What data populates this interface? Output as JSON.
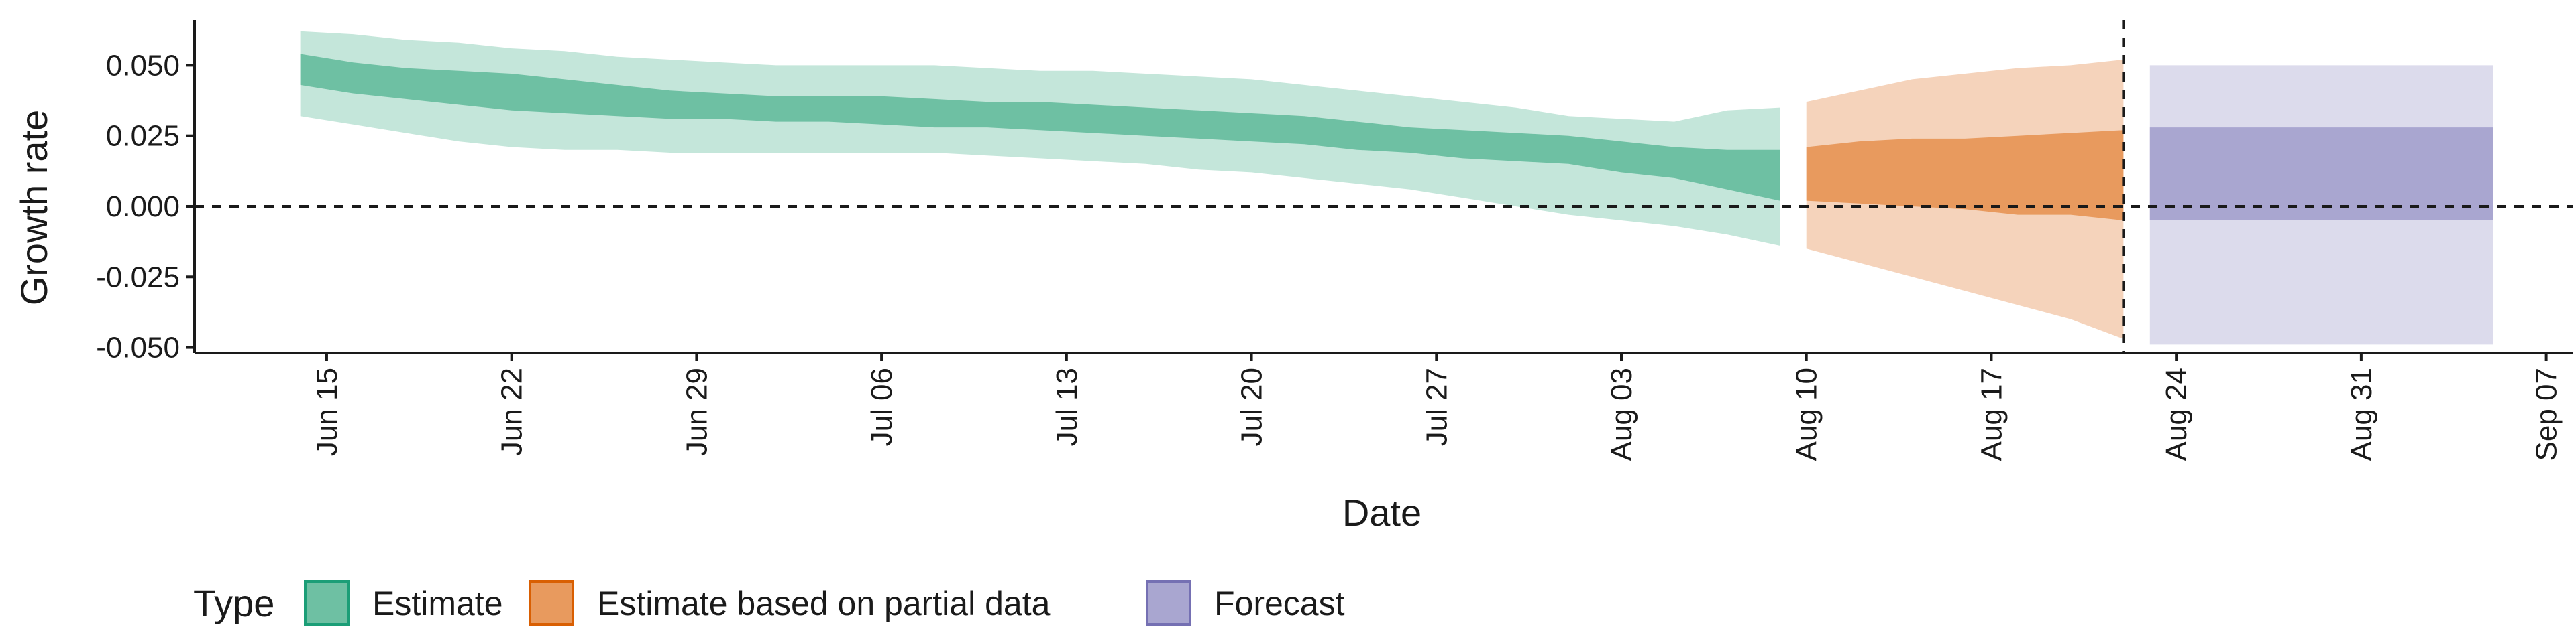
{
  "chart_data": {
    "type": "area",
    "title": "",
    "xlabel": "Date",
    "ylabel": "Growth rate",
    "x_range": [
      "2020-06-10",
      "2020-09-08"
    ],
    "ylim": [
      -0.052,
      0.066
    ],
    "y_ticks": [
      0.05,
      0.025,
      0.0,
      -0.025,
      -0.05
    ],
    "y_tick_labels": [
      "0.050",
      "0.025",
      "0.000",
      "-0.025",
      "-0.050"
    ],
    "x_ticks": [
      "2020-06-15",
      "2020-06-22",
      "2020-06-29",
      "2020-07-06",
      "2020-07-13",
      "2020-07-20",
      "2020-07-27",
      "2020-08-03",
      "2020-08-10",
      "2020-08-17",
      "2020-08-24",
      "2020-08-31",
      "2020-09-07"
    ],
    "x_tick_labels": [
      "Jun 15",
      "Jun 22",
      "Jun 29",
      "Jul 06",
      "Jul 13",
      "Jul 20",
      "Jul 27",
      "Aug 03",
      "Aug 10",
      "Aug 17",
      "Aug 24",
      "Aug 31",
      "Sep 07"
    ],
    "reference_lines": {
      "horizontal_y": 0.0,
      "vertical_x": "2020-08-22"
    },
    "grid": false,
    "legend": {
      "title": "Type",
      "placement": "bottom-left",
      "entries": [
        {
          "label": "Estimate",
          "fill": "#6ec0a3",
          "stroke": "#1b9e77"
        },
        {
          "label": "Estimate based on partial data",
          "fill": "#e89a5e",
          "stroke": "#d95f02"
        },
        {
          "label": "Forecast",
          "fill": "#a9a6d0",
          "stroke": "#7570b3"
        }
      ]
    },
    "series": [
      {
        "name": "Estimate",
        "inner_fill": "#6ec0a3",
        "outer_fill": "#c4e6da",
        "x": [
          "2020-06-14",
          "2020-06-16",
          "2020-06-18",
          "2020-06-20",
          "2020-06-22",
          "2020-06-24",
          "2020-06-26",
          "2020-06-28",
          "2020-06-30",
          "2020-07-02",
          "2020-07-04",
          "2020-07-06",
          "2020-07-08",
          "2020-07-10",
          "2020-07-12",
          "2020-07-14",
          "2020-07-16",
          "2020-07-18",
          "2020-07-20",
          "2020-07-22",
          "2020-07-24",
          "2020-07-26",
          "2020-07-28",
          "2020-07-30",
          "2020-08-01",
          "2020-08-03",
          "2020-08-05",
          "2020-08-07",
          "2020-08-09"
        ],
        "inner_lower": [
          0.043,
          0.04,
          0.038,
          0.036,
          0.034,
          0.033,
          0.032,
          0.031,
          0.031,
          0.03,
          0.03,
          0.029,
          0.028,
          0.028,
          0.027,
          0.026,
          0.025,
          0.024,
          0.023,
          0.022,
          0.02,
          0.019,
          0.017,
          0.016,
          0.015,
          0.012,
          0.01,
          0.006,
          0.002
        ],
        "inner_upper": [
          0.054,
          0.051,
          0.049,
          0.048,
          0.047,
          0.045,
          0.043,
          0.041,
          0.04,
          0.039,
          0.039,
          0.039,
          0.038,
          0.037,
          0.037,
          0.036,
          0.035,
          0.034,
          0.033,
          0.032,
          0.03,
          0.028,
          0.027,
          0.026,
          0.025,
          0.023,
          0.021,
          0.02,
          0.02
        ],
        "outer_lower": [
          0.032,
          0.029,
          0.026,
          0.023,
          0.021,
          0.02,
          0.02,
          0.019,
          0.019,
          0.019,
          0.019,
          0.019,
          0.019,
          0.018,
          0.017,
          0.016,
          0.015,
          0.013,
          0.012,
          0.01,
          0.008,
          0.006,
          0.003,
          0.0,
          -0.003,
          -0.005,
          -0.007,
          -0.01,
          -0.014
        ],
        "outer_upper": [
          0.062,
          0.061,
          0.059,
          0.058,
          0.056,
          0.055,
          0.053,
          0.052,
          0.051,
          0.05,
          0.05,
          0.05,
          0.05,
          0.049,
          0.048,
          0.048,
          0.047,
          0.046,
          0.045,
          0.043,
          0.041,
          0.039,
          0.037,
          0.035,
          0.032,
          0.031,
          0.03,
          0.034,
          0.035
        ]
      },
      {
        "name": "Estimate based on partial data",
        "inner_fill": "#e89a5e",
        "outer_fill": "#f5d3bb",
        "x": [
          "2020-08-10",
          "2020-08-12",
          "2020-08-14",
          "2020-08-16",
          "2020-08-18",
          "2020-08-20",
          "2020-08-22"
        ],
        "inner_lower": [
          0.002,
          0.001,
          0.0,
          -0.001,
          -0.003,
          -0.003,
          -0.005
        ],
        "inner_upper": [
          0.021,
          0.023,
          0.024,
          0.024,
          0.025,
          0.026,
          0.027
        ],
        "outer_lower": [
          -0.015,
          -0.02,
          -0.025,
          -0.03,
          -0.035,
          -0.04,
          -0.047
        ],
        "outer_upper": [
          0.037,
          0.041,
          0.045,
          0.047,
          0.049,
          0.05,
          0.052
        ]
      },
      {
        "name": "Forecast",
        "inner_fill": "#a9a6d0",
        "outer_fill": "#dcdbec",
        "x": [
          "2020-08-23",
          "2020-09-05"
        ],
        "inner_lower": [
          -0.005,
          -0.005
        ],
        "inner_upper": [
          0.028,
          0.028
        ],
        "outer_lower": [
          -0.049,
          -0.049
        ],
        "outer_upper": [
          0.05,
          0.05
        ]
      }
    ]
  }
}
